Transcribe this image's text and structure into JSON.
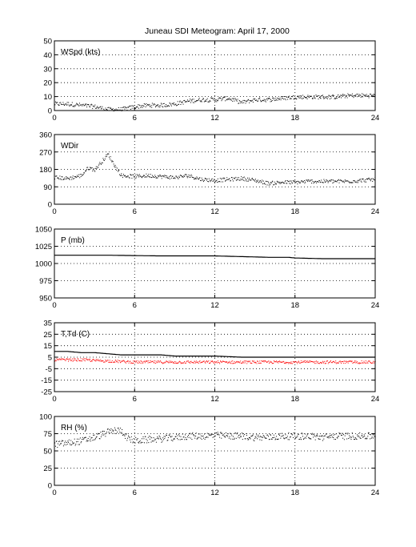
{
  "figure": {
    "title": "Juneau SDI Meteogram:",
    "date": "April 17, 2000"
  },
  "chart_data": [
    {
      "type": "scatter",
      "label": "WSpd (kts)",
      "xlim": [
        0,
        24
      ],
      "ylim": [
        0,
        50
      ],
      "xticks": [
        0,
        6,
        12,
        18,
        24
      ],
      "yticks": [
        0,
        10,
        20,
        30,
        40,
        50
      ],
      "grid": true,
      "series": [
        {
          "color": "#000000",
          "x": [
            0,
            1,
            2,
            3,
            4,
            5,
            6,
            7,
            8,
            9,
            10,
            11,
            12,
            13,
            14,
            15,
            16,
            17,
            18,
            19,
            20,
            21,
            22,
            23,
            24
          ],
          "y": [
            5,
            5,
            4,
            3,
            1,
            1,
            3,
            4,
            4,
            5,
            7,
            8,
            8,
            9,
            6,
            8,
            8,
            9,
            10,
            10,
            10,
            10,
            11,
            11,
            11
          ],
          "spread": 1.5
        }
      ]
    },
    {
      "type": "scatter",
      "label": "WDir",
      "xlim": [
        0,
        24
      ],
      "ylim": [
        0,
        360
      ],
      "xticks": [
        0,
        6,
        12,
        18,
        24
      ],
      "yticks": [
        0,
        90,
        180,
        270,
        360
      ],
      "grid": true,
      "series": [
        {
          "color": "#000000",
          "x": [
            0,
            1,
            2,
            2.5,
            3,
            3.5,
            4,
            4.5,
            5,
            6,
            7,
            8,
            9,
            10,
            11,
            12,
            13,
            14,
            15,
            16,
            17,
            18,
            19,
            20,
            21,
            22,
            23,
            24
          ],
          "y": [
            140,
            135,
            150,
            190,
            180,
            220,
            260,
            200,
            150,
            145,
            150,
            145,
            140,
            150,
            130,
            125,
            130,
            135,
            125,
            110,
            115,
            115,
            120,
            120,
            120,
            120,
            125,
            130
          ],
          "spread": 10
        }
      ]
    },
    {
      "type": "line",
      "label": "P (mb)",
      "xlim": [
        0,
        24
      ],
      "ylim": [
        950,
        1050
      ],
      "xticks": [
        0,
        6,
        12,
        18,
        24
      ],
      "yticks": [
        950,
        975,
        1000,
        1025,
        1050
      ],
      "grid": true,
      "series": [
        {
          "color": "#000000",
          "x": [
            0,
            2,
            4,
            6,
            8,
            10,
            12,
            14,
            16,
            17.5,
            18,
            20,
            24
          ],
          "y": [
            1012,
            1012,
            1012,
            1011.5,
            1011,
            1011,
            1011,
            1010,
            1009,
            1009,
            1008,
            1007,
            1007
          ]
        }
      ]
    },
    {
      "type": "line",
      "label": "T,Td (C)",
      "xlim": [
        0,
        24
      ],
      "ylim": [
        -25,
        35
      ],
      "xticks": [
        0,
        6,
        12,
        18,
        24
      ],
      "yticks": [
        -25,
        -15,
        -5,
        5,
        15,
        25,
        35
      ],
      "grid": true,
      "series": [
        {
          "color": "#000000",
          "x": [
            0,
            1,
            2,
            3,
            4,
            5,
            6,
            7,
            8,
            9,
            10,
            12,
            14,
            16,
            18,
            20,
            22,
            24
          ],
          "y": [
            10,
            10,
            9,
            9,
            8,
            7,
            7,
            7,
            7,
            6,
            6,
            6,
            5,
            5,
            5,
            5,
            5,
            5
          ]
        },
        {
          "color": "#ff0000",
          "x": [
            0,
            2,
            4,
            6,
            8,
            10,
            12,
            14,
            16,
            18,
            20,
            22,
            24
          ],
          "y": [
            3,
            3,
            2,
            1,
            1,
            1,
            1,
            1,
            1,
            1,
            1,
            1,
            1
          ],
          "spread": 1.2
        }
      ]
    },
    {
      "type": "scatter",
      "label": "RH (%)",
      "xlim": [
        0,
        24
      ],
      "ylim": [
        0,
        100
      ],
      "xticks": [
        0,
        6,
        12,
        18,
        24
      ],
      "yticks": [
        0,
        25,
        50,
        75,
        100
      ],
      "grid": true,
      "series": [
        {
          "color": "#000000",
          "x": [
            0,
            1,
            2,
            3,
            4,
            4.5,
            5,
            5.5,
            6,
            7,
            8,
            9,
            10,
            11,
            12,
            13,
            14,
            15,
            16,
            17,
            18,
            19,
            20,
            21,
            22,
            23,
            24
          ],
          "y": [
            60,
            62,
            65,
            70,
            78,
            80,
            80,
            68,
            65,
            67,
            68,
            70,
            72,
            72,
            73,
            72,
            72,
            70,
            70,
            72,
            72,
            72,
            70,
            72,
            72,
            72,
            72
          ],
          "spread": 5
        }
      ]
    }
  ]
}
